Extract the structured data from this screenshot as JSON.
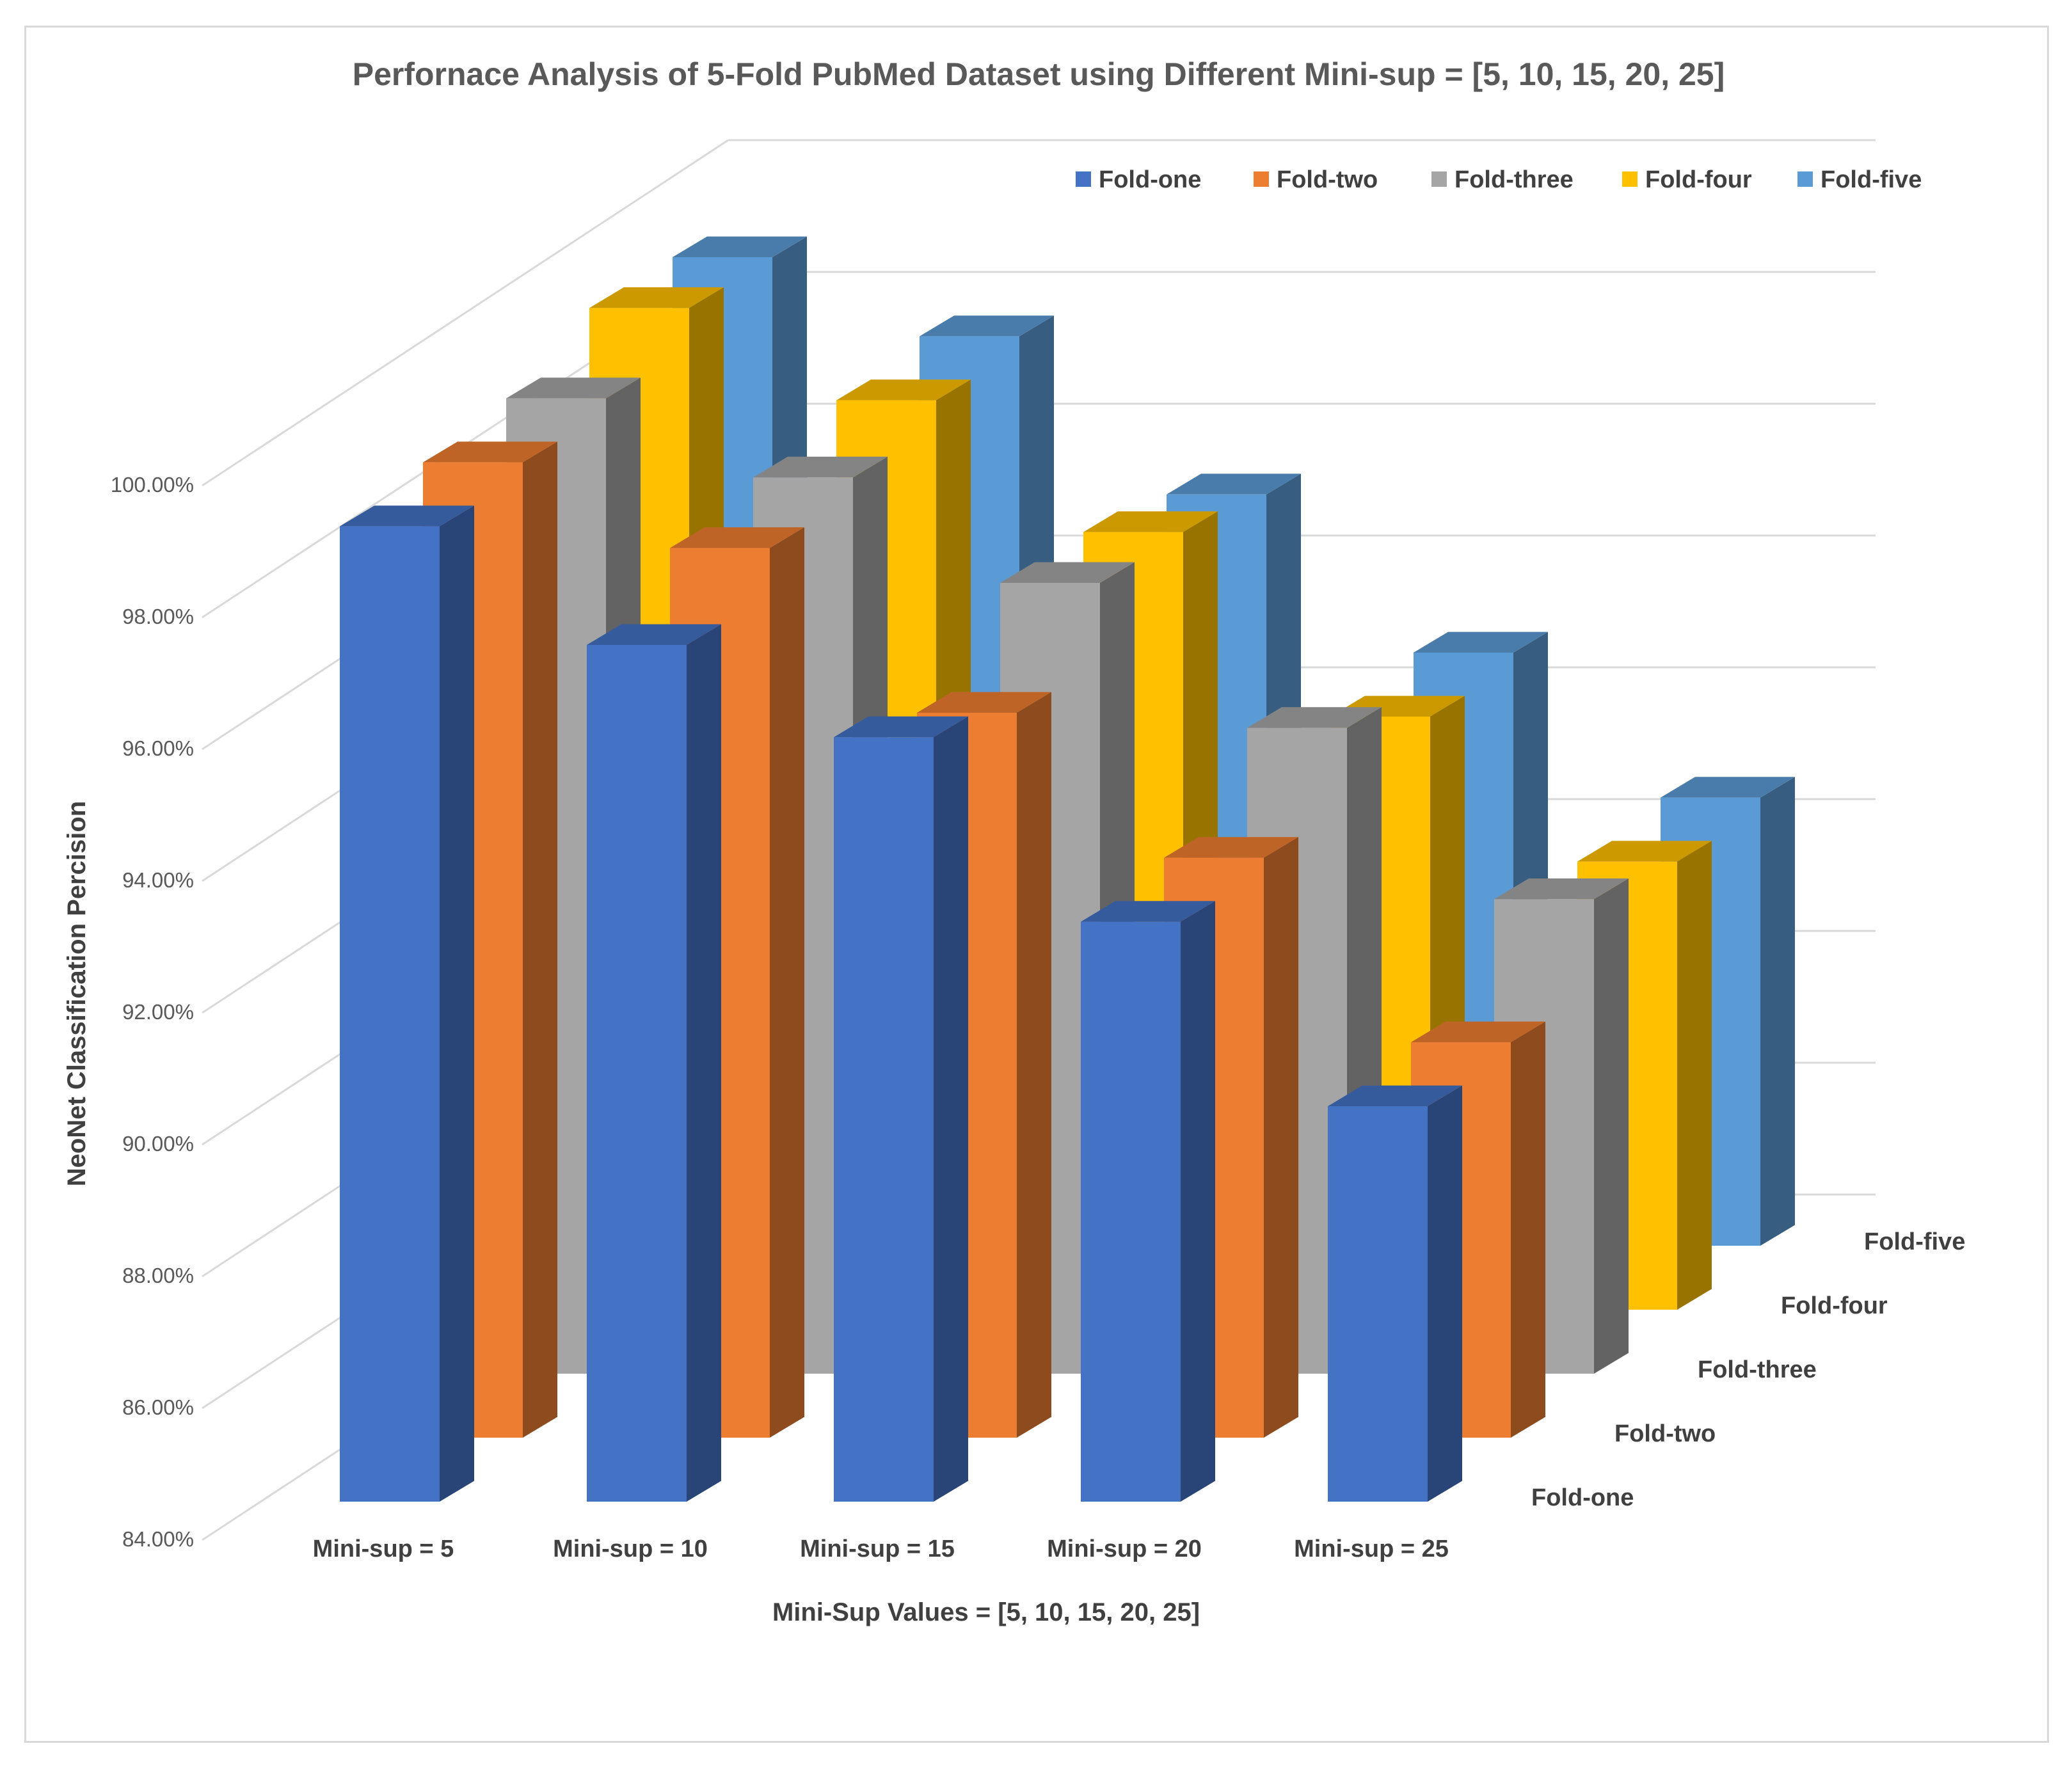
{
  "chart_data": {
    "type": "bar",
    "subtype": "3d-clustered-column",
    "title": "Perfornace Analysis of 5-Fold PubMed Dataset using Different Mini-sup = [5, 10, 15, 20, 25]",
    "xlabel": "Mini-Sup Values = [5, 10, 15, 20, 25]",
    "ylabel": "NeoNet Classification Percision",
    "categories": [
      "Mini-sup = 5",
      "Mini-sup = 10",
      "Mini-sup = 15",
      "Mini-sup = 20",
      "Mini-sup = 25"
    ],
    "series": [
      {
        "name": "Fold-one",
        "color": "#4472c4",
        "values": [
          98.8,
          97.0,
          95.6,
          92.8,
          90.0
        ]
      },
      {
        "name": "Fold-two",
        "color": "#ed7d31",
        "values": [
          98.8,
          97.5,
          95.0,
          92.8,
          90.0
        ]
      },
      {
        "name": "Fold-three",
        "color": "#a5a5a5",
        "values": [
          98.8,
          97.6,
          96.0,
          93.8,
          91.2
        ]
      },
      {
        "name": "Fold-four",
        "color": "#ffc000",
        "values": [
          99.2,
          97.8,
          95.8,
          93.0,
          90.8
        ]
      },
      {
        "name": "Fold-five",
        "color": "#5b9bd5",
        "values": [
          99.0,
          97.8,
          95.4,
          93.0,
          90.8
        ]
      }
    ],
    "yticks": [
      "84.00%",
      "86.00%",
      "88.00%",
      "90.00%",
      "92.00%",
      "94.00%",
      "96.00%",
      "98.00%",
      "100.00%"
    ],
    "ylim": [
      84,
      100
    ],
    "grid": true,
    "legend": "top-right"
  }
}
